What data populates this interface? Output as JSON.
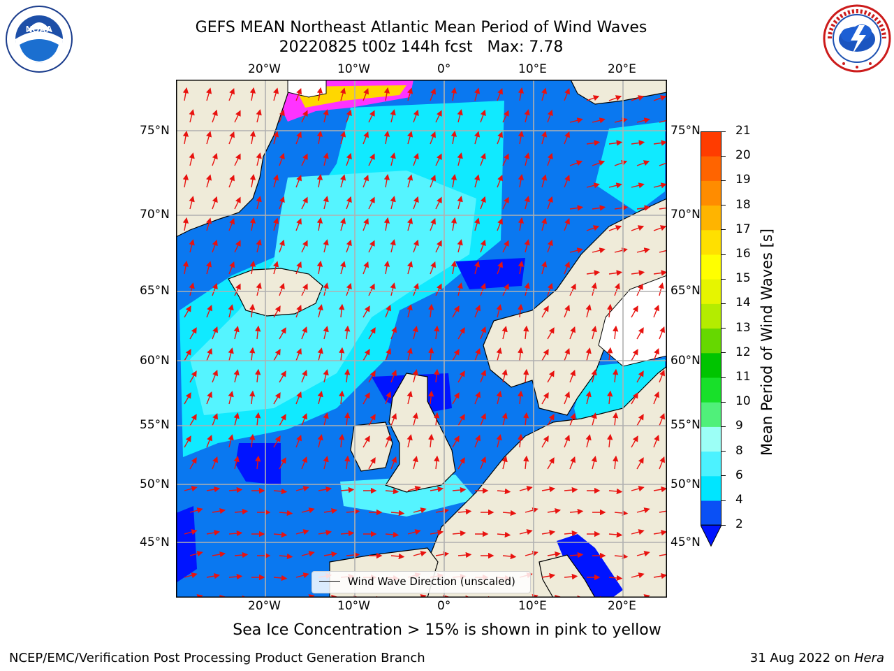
{
  "title": {
    "line1": "GEFS MEAN Northeast Atlantic Mean Period of Wind Waves",
    "line2": "20220825 t00z 144h fcst   Max: 7.78"
  },
  "logos": {
    "left": {
      "icon": "noaa-logo",
      "text": "NOAA",
      "ring_text": "NATIONAL OCEANIC AND ATMOSPHERIC ADMINISTRATION · U.S. DEPARTMENT OF COMMERCE"
    },
    "right": {
      "icon": "nws-logo",
      "ring_text": "NATIONAL WEATHER SERVICE"
    }
  },
  "map": {
    "lon_ticks": [
      "20°W",
      "10°W",
      "0°",
      "10°E",
      "20°E"
    ],
    "lat_ticks": [
      "75°N",
      "70°N",
      "65°N",
      "60°N",
      "55°N",
      "50°N",
      "45°N"
    ],
    "legend_label": "Wind Wave Direction (unscaled)",
    "colors": {
      "land": "#efebd9",
      "grid": "#b0b0b0",
      "arrow": "#e8120f",
      "ice_low": "#ff33ff",
      "ice_high": "#ffd700"
    }
  },
  "colorbar": {
    "label": "Mean Period of Wind Waves [s]",
    "ticks": [
      "2",
      "4",
      "6",
      "8",
      "9",
      "10",
      "11",
      "12",
      "13",
      "14",
      "15",
      "16",
      "17",
      "18",
      "19",
      "20",
      "21"
    ],
    "colors": [
      "#0a50f5",
      "#00e5ff",
      "#4cf2ff",
      "#9cfff6",
      "#50f07a",
      "#18e02a",
      "#00c400",
      "#66d800",
      "#b4ec00",
      "#e6f500",
      "#ffff00",
      "#ffe000",
      "#ffb400",
      "#ff8c00",
      "#ff6400",
      "#ff3c00",
      "#ff0000"
    ],
    "under_color": "#0014ff"
  },
  "caption": "Sea Ice Concentration > 15% is shown in pink to yellow",
  "footer": {
    "left": "NCEP/EMC/Verification Post Processing Product Generation Branch",
    "right_date": "31 Aug 2022 on ",
    "right_host": "Hera"
  }
}
